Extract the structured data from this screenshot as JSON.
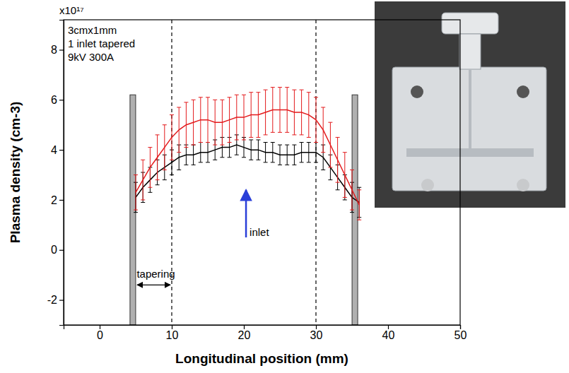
{
  "chart_data": {
    "type": "line",
    "xlabel": "Longitudinal position (mm)",
    "ylabel": "Plasma density (cm-3)",
    "y_multiplier": "x10¹⁷",
    "annotations": [
      "3cmx1mm",
      "1 inlet tapered",
      "9kV 300A"
    ],
    "xlim": [
      -5,
      50
    ],
    "xticks": [
      0,
      10,
      20,
      30,
      40,
      50
    ],
    "ylim": [
      -3,
      9.2
    ],
    "yticks": [
      -2,
      0,
      2,
      4,
      6,
      8
    ],
    "grid": false,
    "x": [
      5,
      6,
      7,
      8,
      9,
      10,
      11,
      12,
      13,
      14,
      15,
      16,
      17,
      18,
      19,
      20,
      21,
      22,
      23,
      24,
      25,
      26,
      27,
      28,
      29,
      30,
      31,
      32,
      33,
      34,
      35,
      36
    ],
    "series": [
      {
        "color": "#000000",
        "values": [
          2.1,
          2.5,
          2.8,
          3.1,
          3.3,
          3.5,
          3.7,
          3.8,
          3.8,
          3.9,
          3.9,
          4.0,
          4.1,
          4.1,
          4.2,
          4.1,
          4.0,
          4.0,
          3.9,
          3.9,
          3.8,
          3.8,
          3.8,
          3.9,
          3.9,
          3.9,
          3.7,
          3.3,
          2.9,
          2.5,
          2.1,
          1.9
        ],
        "errors": [
          0.6,
          0.6,
          0.5,
          0.5,
          0.5,
          0.5,
          0.5,
          0.4,
          0.4,
          0.4,
          0.4,
          0.4,
          0.4,
          0.4,
          0.4,
          0.4,
          0.4,
          0.4,
          0.4,
          0.4,
          0.4,
          0.4,
          0.4,
          0.4,
          0.4,
          0.4,
          0.5,
          0.5,
          0.5,
          0.5,
          0.6,
          0.6
        ]
      },
      {
        "color": "#e31a1c",
        "values": [
          2.3,
          2.8,
          3.3,
          3.7,
          4.1,
          4.5,
          4.8,
          5.0,
          5.1,
          5.2,
          5.2,
          5.1,
          5.1,
          5.2,
          5.3,
          5.3,
          5.4,
          5.4,
          5.5,
          5.6,
          5.6,
          5.6,
          5.5,
          5.5,
          5.4,
          5.2,
          4.8,
          4.2,
          3.6,
          3.0,
          2.4,
          1.8
        ],
        "errors": [
          0.7,
          0.8,
          0.8,
          0.9,
          0.9,
          0.9,
          0.9,
          0.9,
          0.9,
          0.9,
          0.9,
          0.9,
          0.9,
          0.9,
          0.9,
          0.9,
          0.9,
          0.9,
          0.9,
          0.9,
          0.9,
          0.9,
          0.9,
          0.9,
          0.9,
          0.9,
          0.9,
          0.9,
          0.9,
          0.9,
          0.8,
          0.6
        ]
      }
    ],
    "vlines": [
      10,
      30
    ],
    "electrodes": [
      {
        "x": 4.6,
        "top": 6.2
      },
      {
        "x": 35.4,
        "top": 6.2
      }
    ],
    "tapering": {
      "label": "tapering",
      "x_from": 5,
      "x_to": 10,
      "y": -1.4
    },
    "inlet": {
      "label": "inlet",
      "x": 20.3,
      "y_from": 0.5,
      "y_to": 2.4,
      "color": "#2a3fd8"
    }
  }
}
